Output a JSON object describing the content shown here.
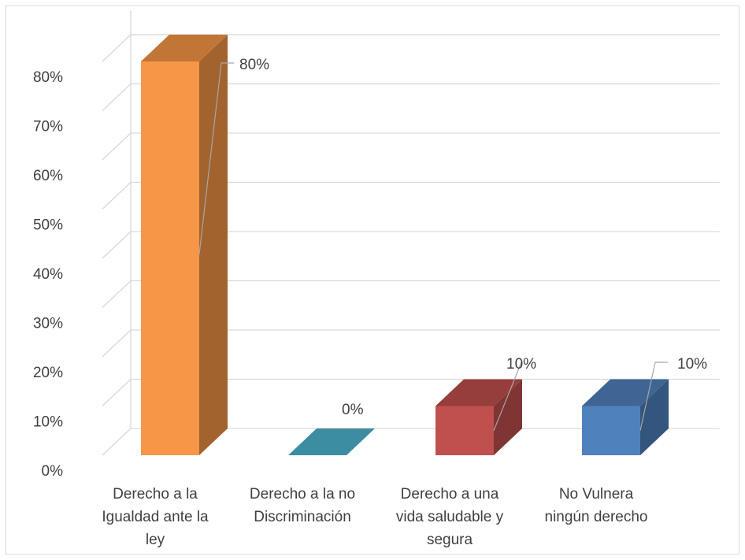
{
  "chart_data": {
    "type": "bar",
    "style": "3d-column",
    "categories": [
      [
        "Derecho a la",
        "Igualdad ante la",
        "ley"
      ],
      [
        "Derecho a la no",
        "Discriminación"
      ],
      [
        "Derecho a una",
        "vida saludable y",
        "segura"
      ],
      [
        "No Vulnera",
        "ningún derecho"
      ]
    ],
    "values": [
      80,
      0,
      10,
      10
    ],
    "data_labels": [
      "80%",
      "0%",
      "10%",
      "10%"
    ],
    "colors": [
      "#f79646",
      "#4bacc6",
      "#c0504d",
      "#4f81bd"
    ],
    "y_ticks": [
      "0%",
      "10%",
      "20%",
      "30%",
      "40%",
      "50%",
      "60%",
      "70%",
      "80%"
    ],
    "ylim": [
      0,
      80
    ],
    "grid": true,
    "legend": "none"
  }
}
